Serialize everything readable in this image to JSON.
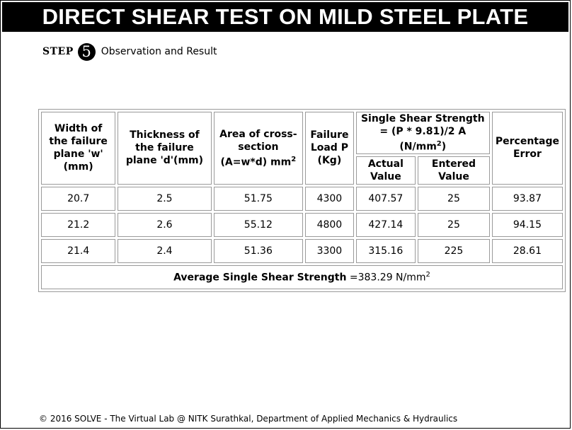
{
  "page": {
    "title": "DIRECT SHEAR TEST ON MILD STEEL PLATE",
    "step_label": "STEP",
    "step_number": "5",
    "step_title": "Observation and Result"
  },
  "table": {
    "headers": {
      "width": "Width of the failure plane 'w' (mm)",
      "thickness": "Thickness of the failure plane 'd'(mm)",
      "area": "Area of cross-section (A=w*d) mm",
      "area_sup": "2",
      "load": "Failure Load P (Kg)",
      "shear_group": "Single Shear Strength = (P * 9.81)/2 A (N/mm",
      "shear_group_sup": "2",
      "shear_group_close": ")",
      "actual": "Actual Value",
      "entered": "Entered Value",
      "error": "Percentage Error"
    },
    "rows": [
      {
        "width": "20.7",
        "thickness": "2.5",
        "area": "51.75",
        "load": "4300",
        "actual": "407.57",
        "entered": "25",
        "error": "93.87"
      },
      {
        "width": "21.2",
        "thickness": "2.6",
        "area": "55.12",
        "load": "4800",
        "actual": "427.14",
        "entered": "25",
        "error": "94.15"
      },
      {
        "width": "21.4",
        "thickness": "2.4",
        "area": "51.36",
        "load": "3300",
        "actual": "315.16",
        "entered": "225",
        "error": "28.61"
      }
    ],
    "average": {
      "label": "Average Single Shear Strength",
      "value": "=383.29 N/mm",
      "sup": "2"
    }
  },
  "footer": "© 2016 SOLVE - The Virtual Lab @ NITK Surathkal, Department of Applied Mechanics & Hydraulics"
}
